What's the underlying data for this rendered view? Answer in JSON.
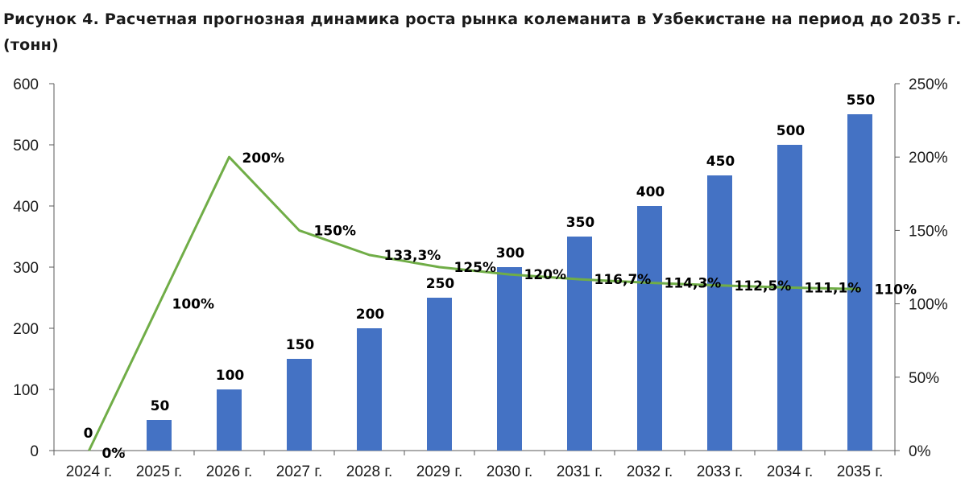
{
  "title": "Рисунок 4. Расчетная прогнозная динамика роста рынка колеманита в Узбекистане на период до 2035 г. (тонн)",
  "chart_data": {
    "type": "bar",
    "categories": [
      "2024 г.",
      "2025 г.",
      "2026 г.",
      "2027 г.",
      "2028 г.",
      "2029 г.",
      "2030 г.",
      "2031 г.",
      "2032 г.",
      "2033 г.",
      "2034 г.",
      "2035 г."
    ],
    "series": [
      {
        "type": "bar",
        "axis": "left",
        "color": "#4472c4",
        "values": [
          0,
          50,
          100,
          150,
          200,
          250,
          300,
          350,
          400,
          450,
          500,
          550
        ],
        "labels": [
          "0",
          "50",
          "100",
          "150",
          "200",
          "250",
          "300",
          "350",
          "400",
          "450",
          "500",
          "550"
        ]
      },
      {
        "type": "line",
        "axis": "right",
        "color": "#70ad47",
        "values": [
          0,
          100,
          200,
          150,
          133.3,
          125,
          120,
          116.7,
          114.3,
          112.5,
          111.1,
          110
        ],
        "labels": [
          "0%",
          "100%",
          "200%",
          "150%",
          "133,3%",
          "125%",
          "120%",
          "116,7%",
          "114,3%",
          "112,5%",
          "111,1%",
          "110%"
        ]
      }
    ],
    "y_left": {
      "min": 0,
      "max": 600,
      "ticks": [
        0,
        100,
        200,
        300,
        400,
        500,
        600
      ],
      "tick_labels": [
        "0",
        "100",
        "200",
        "300",
        "400",
        "500",
        "600"
      ]
    },
    "y_right": {
      "min": 0,
      "max": 250,
      "ticks": [
        0,
        50,
        100,
        150,
        200,
        250
      ],
      "tick_labels": [
        "0%",
        "50%",
        "100%",
        "150%",
        "200%",
        "250%"
      ]
    },
    "grid": false,
    "legend": "none"
  }
}
